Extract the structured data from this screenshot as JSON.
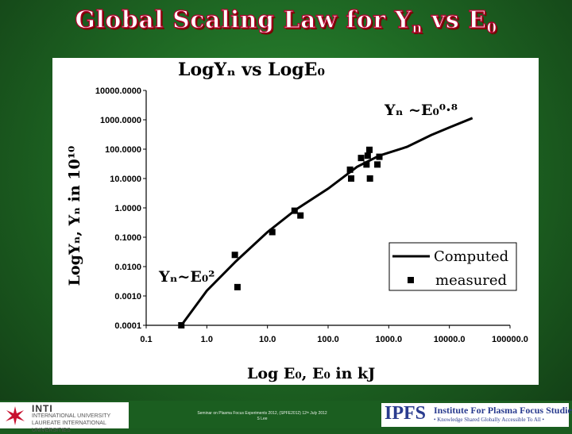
{
  "slide": {
    "title_main": "Global Scaling Law for Y",
    "title_sub1": "n",
    "title_mid": " vs E",
    "title_sub2": "0"
  },
  "chart_data": {
    "type": "scatter",
    "title": "LogYₙ vs LogE₀",
    "xlabel": "Log E₀,  E₀ in kJ",
    "ylabel": "LogYₙ,  Yₙ in 10¹⁰",
    "x_scale": "log",
    "y_scale": "log",
    "xlim": [
      0.1,
      100000
    ],
    "ylim": [
      0.0001,
      10000
    ],
    "x_ticks": [
      "0.1",
      "1.0",
      "10.0",
      "100.0",
      "1000.0",
      "10000.0",
      "100000.0"
    ],
    "y_ticks": [
      "0.0001",
      "0.0010",
      "0.0100",
      "0.1000",
      "1.0000",
      "10.0000",
      "100.0000",
      "1000.0000",
      "10000.0000"
    ],
    "grid": false,
    "legend_position": "bottom-right",
    "annotations": [
      {
        "text": "Yₙ ~E₀⁰·⁸"
      },
      {
        "text": "Yₙ~E₀²"
      }
    ],
    "series": [
      {
        "name": "Computed",
        "style": "line",
        "x": [
          0.38,
          1,
          3,
          10,
          30,
          100,
          300,
          700,
          2000,
          5000,
          10000,
          24000
        ],
        "y": [
          0.0001,
          0.0015,
          0.015,
          0.15,
          0.9,
          4.5,
          25,
          60,
          120,
          300,
          550,
          1150
        ]
      },
      {
        "name": "measured",
        "style": "marker",
        "x": [
          0.38,
          2.9,
          3.2,
          12,
          28,
          35,
          230,
          240,
          350,
          430,
          450,
          480,
          490,
          650,
          700
        ],
        "y": [
          0.0001,
          0.025,
          0.002,
          0.15,
          0.8,
          0.55,
          20,
          10,
          50,
          30,
          60,
          95,
          10,
          30,
          55
        ]
      }
    ]
  },
  "footer": {
    "inti_name": "INTI",
    "inti_line1": "INTERNATIONAL UNIVERSITY",
    "inti_line2": "LAUREATE INTERNATIONAL UNIVERSITIES",
    "note_line1": "Seminar on Plasma Focus Experiments 2012, (SPFE2012) 12ᵗʰ July 2012",
    "note_line2": "S Lee",
    "ipfs_abbr": "IPFS",
    "ipfs_name": "Institute For Plasma Focus Studies",
    "ipfs_tagline": "• Knowledge Shared Globally Accessible To All •"
  },
  "colors": {
    "slide_bg": "#1f6a24",
    "title_fill": "#ffffff",
    "title_stroke": "#b3002d",
    "chart_ink": "#000000",
    "ipfs_blue": "#2a3c8f",
    "inti_red": "#c8102e"
  }
}
